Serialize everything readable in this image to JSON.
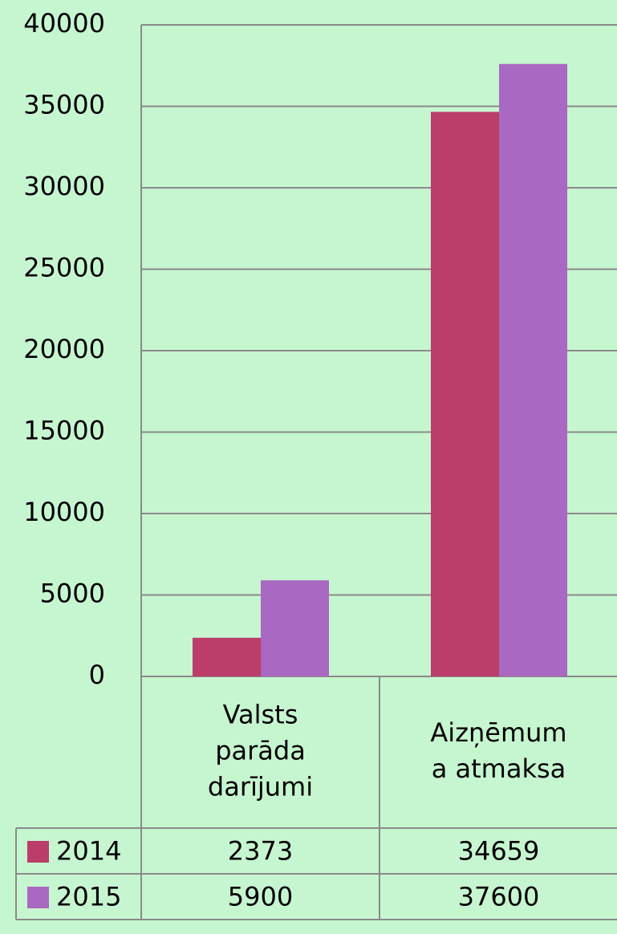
{
  "chart_data": {
    "type": "bar",
    "categories": [
      "Valsts\nparāda\ndarījumi",
      "Aizņēmum\na atmaksa"
    ],
    "series": [
      {
        "name": "2014",
        "color": "#bb3d69",
        "values": [
          2373,
          34659
        ]
      },
      {
        "name": "2015",
        "color": "#a968c1",
        "values": [
          5900,
          37600
        ]
      }
    ],
    "ylim": [
      0,
      40000
    ],
    "yticks": [
      0,
      5000,
      10000,
      15000,
      20000,
      25000,
      30000,
      35000,
      40000
    ],
    "grid": true,
    "data_table": true
  }
}
